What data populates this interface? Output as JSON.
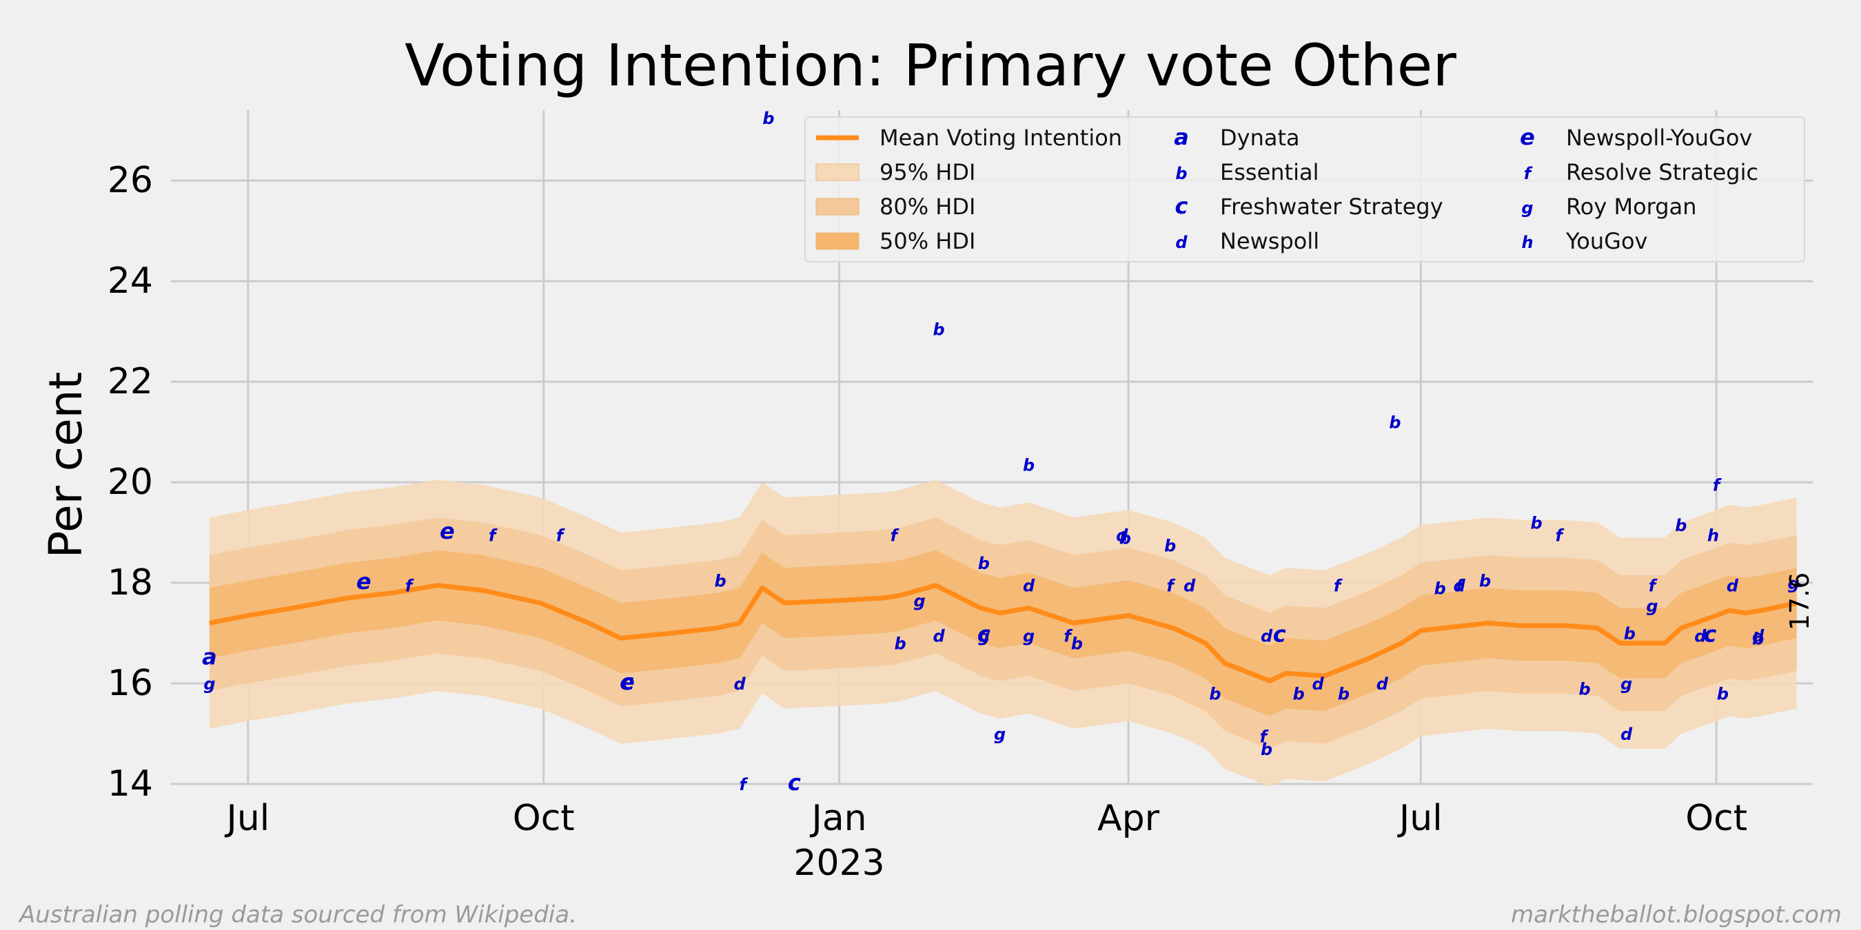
{
  "chart_data": {
    "type": "line",
    "title": "Voting Intention: Primary vote Other",
    "ylabel": "Per cent",
    "xlabel": "",
    "ylim": [
      14,
      27.4
    ],
    "xlim": [
      "2022-06-07",
      "2023-10-31"
    ],
    "yticks": [
      14,
      16,
      18,
      20,
      22,
      24,
      26
    ],
    "xticks": [
      {
        "date": "2022-07-01",
        "label": "Jul"
      },
      {
        "date": "2022-10-01",
        "label": "Oct"
      },
      {
        "date": "2023-01-01",
        "label": "Jan",
        "sublabel": "2023"
      },
      {
        "date": "2023-04-01",
        "label": "Apr"
      },
      {
        "date": "2023-07-01",
        "label": "Jul"
      },
      {
        "date": "2023-10-01",
        "label": "Oct"
      }
    ],
    "grid": true,
    "legend_position": "top-right",
    "end_label": "17.6",
    "colors": {
      "mean": "#ff8c1a",
      "band95": "#f5d9b8",
      "band80": "#f4c898",
      "band50": "#f5b56c",
      "poll_marker": "#0000cc",
      "background": "#f0f0f0",
      "grid": "#cbcbcb"
    },
    "legend": {
      "series": [
        {
          "label": "Mean Voting Intention",
          "kind": "line"
        },
        {
          "label": "95% HDI",
          "kind": "band95"
        },
        {
          "label": "80% HDI",
          "kind": "band80"
        },
        {
          "label": "50% HDI",
          "kind": "band50"
        }
      ],
      "pollsters": [
        {
          "code": "a",
          "name": "Dynata"
        },
        {
          "code": "b",
          "name": "Essential"
        },
        {
          "code": "c",
          "name": "Freshwater Strategy"
        },
        {
          "code": "d",
          "name": "Newspoll"
        },
        {
          "code": "e",
          "name": "Newspoll-YouGov"
        },
        {
          "code": "f",
          "name": "Resolve Strategic"
        },
        {
          "code": "g",
          "name": "Roy Morgan"
        },
        {
          "code": "h",
          "name": "YouGov"
        }
      ]
    },
    "mean_series": {
      "name": "Mean Voting Intention",
      "points": [
        [
          "2022-06-19",
          17.2
        ],
        [
          "2022-07-01",
          17.35
        ],
        [
          "2022-07-15",
          17.5
        ],
        [
          "2022-08-01",
          17.7
        ],
        [
          "2022-08-15",
          17.8
        ],
        [
          "2022-08-29",
          17.95
        ],
        [
          "2022-09-12",
          17.85
        ],
        [
          "2022-09-30",
          17.6
        ],
        [
          "2022-10-15",
          17.2
        ],
        [
          "2022-10-25",
          16.9
        ],
        [
          "2022-11-10",
          17.0
        ],
        [
          "2022-11-24",
          17.1
        ],
        [
          "2022-12-01",
          17.2
        ],
        [
          "2022-12-08",
          17.9
        ],
        [
          "2022-12-15",
          17.6
        ],
        [
          "2023-01-01",
          17.65
        ],
        [
          "2023-01-15",
          17.7
        ],
        [
          "2023-01-20",
          17.75
        ],
        [
          "2023-01-31",
          17.95
        ],
        [
          "2023-02-14",
          17.5
        ],
        [
          "2023-02-20",
          17.4
        ],
        [
          "2023-03-01",
          17.5
        ],
        [
          "2023-03-15",
          17.2
        ],
        [
          "2023-04-01",
          17.35
        ],
        [
          "2023-04-15",
          17.1
        ],
        [
          "2023-04-25",
          16.8
        ],
        [
          "2023-05-01",
          16.4
        ],
        [
          "2023-05-15",
          16.05
        ],
        [
          "2023-05-20",
          16.2
        ],
        [
          "2023-06-01",
          16.15
        ],
        [
          "2023-06-15",
          16.5
        ],
        [
          "2023-06-25",
          16.8
        ],
        [
          "2023-07-01",
          17.05
        ],
        [
          "2023-07-15",
          17.15
        ],
        [
          "2023-07-22",
          17.2
        ],
        [
          "2023-08-01",
          17.15
        ],
        [
          "2023-08-15",
          17.15
        ],
        [
          "2023-08-25",
          17.1
        ],
        [
          "2023-09-01",
          16.8
        ],
        [
          "2023-09-15",
          16.8
        ],
        [
          "2023-09-20",
          17.1
        ],
        [
          "2023-10-01",
          17.35
        ],
        [
          "2023-10-05",
          17.45
        ],
        [
          "2023-10-10",
          17.4
        ],
        [
          "2023-10-15",
          17.45
        ],
        [
          "2023-10-26",
          17.6
        ]
      ]
    },
    "hdi_half_widths": {
      "95": 2.1,
      "80": 1.35,
      "50": 0.7
    },
    "polls": [
      {
        "code": "a",
        "date": "2022-06-19",
        "value": 16.5
      },
      {
        "code": "g",
        "date": "2022-06-19",
        "value": 16.0
      },
      {
        "code": "e",
        "date": "2022-08-06",
        "value": 18.0
      },
      {
        "code": "f",
        "date": "2022-08-20",
        "value": 17.95
      },
      {
        "code": "e",
        "date": "2022-09-01",
        "value": 19.0
      },
      {
        "code": "f",
        "date": "2022-09-15",
        "value": 18.95
      },
      {
        "code": "f",
        "date": "2022-10-06",
        "value": 18.95
      },
      {
        "code": "e",
        "date": "2022-10-27",
        "value": 16.0
      },
      {
        "code": "c",
        "date": "2022-10-27",
        "value": 16.0
      },
      {
        "code": "b",
        "date": "2022-11-25",
        "value": 18.05
      },
      {
        "code": "d",
        "date": "2022-12-01",
        "value": 16.0
      },
      {
        "code": "f",
        "date": "2022-12-02",
        "value": 14.0
      },
      {
        "code": "b",
        "date": "2022-12-10",
        "value": 27.25
      },
      {
        "code": "c",
        "date": "2022-12-18",
        "value": 14.0
      },
      {
        "code": "f",
        "date": "2023-01-18",
        "value": 18.95
      },
      {
        "code": "b",
        "date": "2023-01-20",
        "value": 16.8
      },
      {
        "code": "g",
        "date": "2023-01-26",
        "value": 17.65
      },
      {
        "code": "b",
        "date": "2023-02-01",
        "value": 23.05
      },
      {
        "code": "d",
        "date": "2023-02-01",
        "value": 16.95
      },
      {
        "code": "b",
        "date": "2023-02-15",
        "value": 18.4
      },
      {
        "code": "g",
        "date": "2023-02-15",
        "value": 16.95
      },
      {
        "code": "c",
        "date": "2023-02-15",
        "value": 16.95
      },
      {
        "code": "g",
        "date": "2023-02-20",
        "value": 15.0
      },
      {
        "code": "d",
        "date": "2023-03-01",
        "value": 17.95
      },
      {
        "code": "b",
        "date": "2023-03-01",
        "value": 20.35
      },
      {
        "code": "g",
        "date": "2023-03-01",
        "value": 16.95
      },
      {
        "code": "f",
        "date": "2023-03-13",
        "value": 16.95
      },
      {
        "code": "b",
        "date": "2023-03-16",
        "value": 16.8
      },
      {
        "code": "d",
        "date": "2023-03-30",
        "value": 18.95
      },
      {
        "code": "b",
        "date": "2023-03-31",
        "value": 18.9
      },
      {
        "code": "b",
        "date": "2023-04-14",
        "value": 18.75
      },
      {
        "code": "f",
        "date": "2023-04-14",
        "value": 17.95
      },
      {
        "code": "d",
        "date": "2023-04-20",
        "value": 17.95
      },
      {
        "code": "b",
        "date": "2023-04-28",
        "value": 15.8
      },
      {
        "code": "f",
        "date": "2023-05-13",
        "value": 14.95
      },
      {
        "code": "b",
        "date": "2023-05-14",
        "value": 14.7
      },
      {
        "code": "d",
        "date": "2023-05-14",
        "value": 16.95
      },
      {
        "code": "c",
        "date": "2023-05-18",
        "value": 16.95
      },
      {
        "code": "b",
        "date": "2023-05-24",
        "value": 15.8
      },
      {
        "code": "d",
        "date": "2023-05-30",
        "value": 16.0
      },
      {
        "code": "b",
        "date": "2023-06-07",
        "value": 15.8
      },
      {
        "code": "f",
        "date": "2023-06-05",
        "value": 17.95
      },
      {
        "code": "d",
        "date": "2023-06-19",
        "value": 16.0
      },
      {
        "code": "b",
        "date": "2023-06-23",
        "value": 21.2
      },
      {
        "code": "b",
        "date": "2023-07-07",
        "value": 17.9
      },
      {
        "code": "d",
        "date": "2023-07-13",
        "value": 17.95
      },
      {
        "code": "f",
        "date": "2023-07-13",
        "value": 17.95
      },
      {
        "code": "b",
        "date": "2023-07-21",
        "value": 18.05
      },
      {
        "code": "b",
        "date": "2023-08-06",
        "value": 19.2
      },
      {
        "code": "f",
        "date": "2023-08-13",
        "value": 18.95
      },
      {
        "code": "b",
        "date": "2023-08-21",
        "value": 15.9
      },
      {
        "code": "d",
        "date": "2023-09-03",
        "value": 15.0
      },
      {
        "code": "g",
        "date": "2023-09-03",
        "value": 16.0
      },
      {
        "code": "b",
        "date": "2023-09-04",
        "value": 17.0
      },
      {
        "code": "g",
        "date": "2023-09-11",
        "value": 17.55
      },
      {
        "code": "f",
        "date": "2023-09-11",
        "value": 17.95
      },
      {
        "code": "b",
        "date": "2023-09-20",
        "value": 19.15
      },
      {
        "code": "d",
        "date": "2023-09-26",
        "value": 16.95
      },
      {
        "code": "c",
        "date": "2023-09-29",
        "value": 16.95
      },
      {
        "code": "h",
        "date": "2023-09-30",
        "value": 18.95
      },
      {
        "code": "f",
        "date": "2023-10-01",
        "value": 19.95
      },
      {
        "code": "b",
        "date": "2023-10-03",
        "value": 15.8
      },
      {
        "code": "d",
        "date": "2023-10-06",
        "value": 17.95
      },
      {
        "code": "b",
        "date": "2023-10-14",
        "value": 16.9
      },
      {
        "code": "d",
        "date": "2023-10-14",
        "value": 16.95
      },
      {
        "code": "g",
        "date": "2023-10-25",
        "value": 18.0
      }
    ]
  },
  "footer": {
    "source": "Australian polling data sourced from Wikipedia.",
    "site": "marktheballot.blogspot.com"
  }
}
